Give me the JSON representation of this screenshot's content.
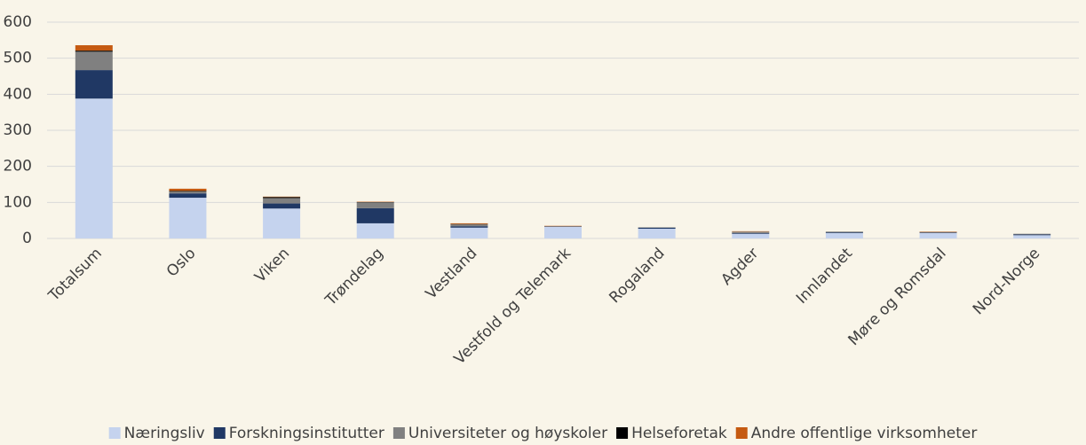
{
  "chart_data": {
    "type": "stacked_bar",
    "categories": [
      "Totalsum",
      "Oslo",
      "Viken",
      "Trøndelag",
      "Vestland",
      "Vestfold og Telemark",
      "Rogaland",
      "Agder",
      "Innlandet",
      "Møre og Romsdal",
      "Nord-Norge"
    ],
    "series": [
      {
        "name": "Næringsliv",
        "color": "#c5d3ee",
        "values": [
          388,
          113,
          83,
          42,
          30,
          32,
          27,
          13,
          15,
          15,
          9
        ]
      },
      {
        "name": "Forskningsinstitutter",
        "color": "#203864",
        "values": [
          79,
          12,
          14,
          42,
          4,
          1,
          3,
          2,
          2,
          1,
          2
        ]
      },
      {
        "name": "Universiteter og høyskoler",
        "color": "#808080",
        "values": [
          51,
          5,
          15,
          16,
          5,
          1,
          1,
          4,
          2,
          2,
          2
        ]
      },
      {
        "name": "Helseforetak",
        "color": "#000000",
        "values": [
          3,
          2,
          3,
          1,
          1,
          0,
          0,
          0,
          0,
          0,
          0
        ]
      },
      {
        "name": "Andre offentlige virksomheter",
        "color": "#c55a11",
        "values": [
          15,
          6,
          1,
          1,
          2,
          1,
          0,
          1,
          0,
          1,
          0
        ]
      }
    ],
    "ylim": [
      0,
      600
    ],
    "yticks": [
      0,
      100,
      200,
      300,
      400,
      500,
      600
    ],
    "grid": true,
    "legend": "bottom"
  }
}
